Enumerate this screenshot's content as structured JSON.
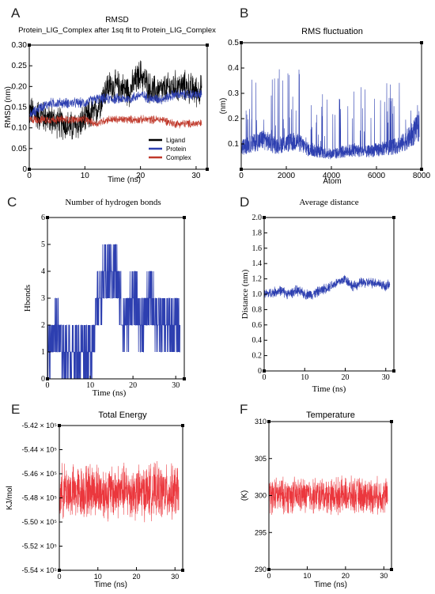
{
  "chart_data": [
    {
      "panel_letter": "A",
      "type": "line",
      "title": "RMSD",
      "subtitle": "Protein_LIG_Complex after 1sq fit to Protein_LIG_Complex",
      "xlabel": "Time (ns)",
      "ylabel": "RMSD (nm)",
      "xlim": [
        0,
        32
      ],
      "ylim": [
        0,
        0.3
      ],
      "xticks": [
        0,
        10,
        20,
        30
      ],
      "yticks": [
        0,
        0.05,
        0.1,
        0.15,
        0.2,
        0.25,
        0.3
      ],
      "ytick_labels": [
        "0",
        "0.05",
        "0.10",
        "0.15",
        "0.20",
        "0.25",
        "0.30"
      ],
      "legend_position": "bottom-right",
      "series": [
        {
          "name": "Ligand",
          "color": "#000000",
          "x": [
            0,
            2,
            4,
            6,
            8,
            10,
            12,
            14,
            16,
            18,
            20,
            22,
            24,
            26,
            28,
            30,
            31
          ],
          "y": [
            0.14,
            0.13,
            0.12,
            0.11,
            0.1,
            0.12,
            0.14,
            0.2,
            0.2,
            0.19,
            0.23,
            0.19,
            0.19,
            0.2,
            0.2,
            0.19,
            0.19
          ]
        },
        {
          "name": "Protein",
          "color": "#2d3fb0",
          "x": [
            0,
            2,
            4,
            6,
            8,
            10,
            12,
            14,
            16,
            18,
            20,
            22,
            24,
            26,
            28,
            30,
            31
          ],
          "y": [
            0.13,
            0.15,
            0.16,
            0.16,
            0.16,
            0.16,
            0.17,
            0.17,
            0.17,
            0.17,
            0.18,
            0.17,
            0.17,
            0.18,
            0.18,
            0.18,
            0.18
          ]
        },
        {
          "name": "Complex",
          "color": "#c0392b",
          "x": [
            0,
            2,
            4,
            6,
            8,
            10,
            12,
            14,
            16,
            18,
            20,
            22,
            24,
            26,
            28,
            30,
            31
          ],
          "y": [
            0.12,
            0.12,
            0.12,
            0.12,
            0.12,
            0.12,
            0.11,
            0.12,
            0.12,
            0.12,
            0.12,
            0.12,
            0.12,
            0.11,
            0.11,
            0.11,
            0.11
          ]
        }
      ]
    },
    {
      "panel_letter": "B",
      "type": "line",
      "title": "RMS fluctuation",
      "xlabel": "Atom",
      "ylabel": "(nm)",
      "xlim": [
        0,
        8000
      ],
      "ylim": [
        0,
        0.5
      ],
      "xticks": [
        0,
        2000,
        4000,
        6000,
        8000
      ],
      "yticks": [
        0.1,
        0.2,
        0.3,
        0.4,
        0.5
      ],
      "series": [
        {
          "color": "#2d3fb0",
          "x": [
            0,
            500,
            1000,
            1500,
            2000,
            2500,
            3000,
            3500,
            4000,
            4500,
            5000,
            5500,
            6000,
            6500,
            7000,
            7500,
            7900
          ],
          "y": [
            0.1,
            0.12,
            0.14,
            0.11,
            0.12,
            0.13,
            0.09,
            0.08,
            0.07,
            0.08,
            0.09,
            0.08,
            0.09,
            0.1,
            0.11,
            0.15,
            0.2
          ]
        }
      ]
    },
    {
      "panel_letter": "C",
      "type": "line",
      "title": "Number of hydrogen bonds",
      "xlabel": "Time (ns)",
      "ylabel": "Hbonds",
      "xlim": [
        0,
        32
      ],
      "ylim": [
        0,
        6
      ],
      "xticks": [
        0,
        10,
        20,
        30
      ],
      "yticks": [
        0,
        1,
        2,
        3,
        4,
        5,
        6
      ],
      "series": [
        {
          "color": "#2d3fb0",
          "x": [
            0,
            2,
            4,
            6,
            8,
            10,
            12,
            14,
            16,
            18,
            20,
            22,
            24,
            26,
            28,
            30,
            31
          ],
          "y": [
            1,
            2,
            1,
            1,
            1,
            1,
            3,
            4,
            4,
            2,
            3,
            2,
            3,
            2,
            2,
            2,
            2
          ]
        }
      ]
    },
    {
      "panel_letter": "D",
      "type": "line",
      "title": "Average distance",
      "xlabel": "Time (ns)",
      "ylabel": "Distance (nm)",
      "xlim": [
        0,
        32
      ],
      "ylim": [
        0,
        2.0
      ],
      "xticks": [
        0,
        10,
        20,
        30
      ],
      "yticks": [
        0,
        0.2,
        0.4,
        0.6,
        0.8,
        1.0,
        1.2,
        1.4,
        1.6,
        1.8,
        2.0
      ],
      "ytick_labels": [
        "0",
        "0.2",
        "0.4",
        "0.6",
        "0.8",
        "1.0",
        "1.2",
        "1.4",
        "1.6",
        "1.8",
        "2.0"
      ],
      "series": [
        {
          "color": "#2d3fb0",
          "x": [
            0,
            2,
            4,
            6,
            8,
            10,
            12,
            14,
            16,
            18,
            20,
            22,
            24,
            26,
            28,
            30,
            31
          ],
          "y": [
            1.0,
            1.02,
            1.05,
            1.0,
            1.05,
            1.0,
            1.0,
            1.05,
            1.1,
            1.15,
            1.2,
            1.1,
            1.15,
            1.15,
            1.15,
            1.1,
            1.12
          ]
        }
      ]
    },
    {
      "panel_letter": "E",
      "type": "line",
      "title": "Total Energy",
      "xlabel": "Time (ns)",
      "ylabel": "KJ/mol",
      "xlim": [
        0,
        32
      ],
      "ylim": [
        -554000,
        -542000
      ],
      "xticks": [
        0,
        10,
        20,
        30
      ],
      "yticks": [
        -554000,
        -552000,
        -550000,
        -548000,
        -546000,
        -544000,
        -542000
      ],
      "ytick_labels": [
        "-5.54 × 10⁵",
        "-5.52 × 10⁵",
        "-5.50 × 10⁵",
        "-5.48 × 10⁵",
        "-5.46 × 10⁵",
        "-5.44 × 10⁵",
        "-5.42 × 10⁵"
      ],
      "series": [
        {
          "color": "#e8141b",
          "x": [
            0,
            2,
            4,
            6,
            8,
            10,
            12,
            14,
            16,
            18,
            20,
            22,
            24,
            26,
            28,
            30,
            31
          ],
          "y": [
            -547500,
            -547400,
            -547600,
            -547500,
            -547300,
            -547400,
            -547600,
            -547500,
            -547400,
            -547500,
            -547600,
            -547500,
            -547400,
            -547500,
            -547600,
            -547500,
            -547400
          ]
        }
      ]
    },
    {
      "panel_letter": "F",
      "type": "line",
      "title": "Temperature",
      "xlabel": "Time (ns)",
      "ylabel": "(K)",
      "xlim": [
        0,
        32
      ],
      "ylim": [
        290,
        310
      ],
      "xticks": [
        0,
        10,
        20,
        30
      ],
      "yticks": [
        290,
        295,
        300,
        305,
        310
      ],
      "series": [
        {
          "color": "#e8141b",
          "x": [
            0,
            2,
            4,
            6,
            8,
            10,
            12,
            14,
            16,
            18,
            20,
            22,
            24,
            26,
            28,
            30,
            31
          ],
          "y": [
            300,
            300,
            300,
            300,
            300,
            300,
            300,
            300,
            300,
            300,
            300,
            300,
            300,
            300,
            300,
            300,
            300
          ]
        }
      ]
    }
  ]
}
